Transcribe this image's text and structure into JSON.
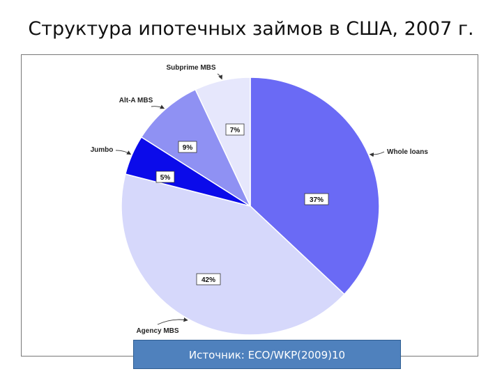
{
  "page": {
    "title": "Структура ипотечных займов в США, 2007 г.",
    "source": "Источник: ECO/WKP(2009)10"
  },
  "chart_data": {
    "type": "pie",
    "slices": [
      {
        "label": "Whole loans",
        "value": 37,
        "value_label": "37%",
        "color": "#6a6af5"
      },
      {
        "label": "Agency MBS",
        "value": 42,
        "value_label": "42%",
        "color": "#d6d8fb"
      },
      {
        "label": "Jumbo",
        "value": 5,
        "value_label": "5%",
        "color": "#0b0bea"
      },
      {
        "label": "Alt-A MBS",
        "value": 9,
        "value_label": "9%",
        "color": "#8f91f3"
      },
      {
        "label": "Subprime MBS",
        "value": 7,
        "value_label": "7%",
        "color": "#e6e7fc"
      }
    ],
    "start": "12 o'clock",
    "direction": "clockwise"
  }
}
